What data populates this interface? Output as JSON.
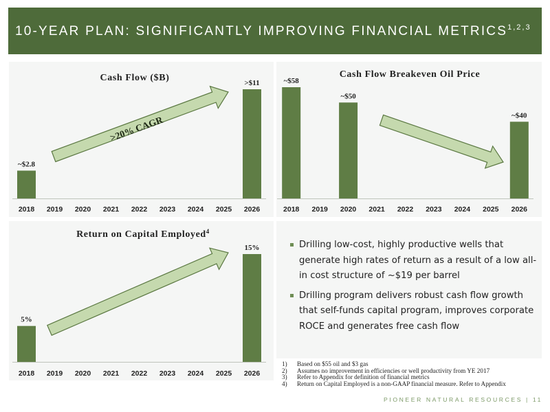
{
  "header": {
    "title": "10-YEAR PLAN: SIGNIFICANTLY IMPROVING FINANCIAL METRICS",
    "superscript": "1,2,3"
  },
  "colors": {
    "header_bg": "#4e6b3a",
    "bar": "#5f7d45",
    "arrow_fill": "#c5d9ae",
    "arrow_stroke": "#5b7842",
    "panel_bg": "#f5f6f5",
    "accent": "#7d9a68"
  },
  "chart_data": [
    {
      "type": "bar",
      "title": "Cash Flow ($B)",
      "categories": [
        "2018",
        "2019",
        "2020",
        "2021",
        "2022",
        "2023",
        "2024",
        "2025",
        "2026"
      ],
      "values": [
        2.8,
        null,
        null,
        null,
        null,
        null,
        null,
        null,
        11
      ],
      "data_labels": [
        "~$2.8",
        "",
        "",
        "",
        "",
        "",
        "",
        "",
        ">$11"
      ],
      "annotation": ">20% CAGR",
      "arrow": "up"
    },
    {
      "type": "bar",
      "title": "Cash Flow Breakeven Oil Price",
      "categories": [
        "2018",
        "2019",
        "2020",
        "2021",
        "2022",
        "2023",
        "2024",
        "2025",
        "2026"
      ],
      "values": [
        58,
        null,
        50,
        null,
        null,
        null,
        null,
        null,
        40
      ],
      "data_labels": [
        "~$58",
        "",
        "~$50",
        "",
        "",
        "",
        "",
        "",
        "~$40"
      ],
      "annotation": "",
      "arrow": "down"
    },
    {
      "type": "bar",
      "title": "Return on Capital Employed",
      "title_superscript": "4",
      "categories": [
        "2018",
        "2019",
        "2020",
        "2021",
        "2022",
        "2023",
        "2024",
        "2025",
        "2026"
      ],
      "values": [
        5,
        null,
        null,
        null,
        null,
        null,
        null,
        null,
        15
      ],
      "data_labels": [
        "5%",
        "",
        "",
        "",
        "",
        "",
        "",
        "",
        "15%"
      ],
      "annotation": "",
      "arrow": "up"
    }
  ],
  "bullets": [
    "Drilling low-cost, highly productive wells that generate high rates of return as a result of a low all-in cost structure of ~$19 per barrel",
    "Drilling program delivers robust cash flow growth that self-funds capital program, improves corporate ROCE and generates free cash flow"
  ],
  "footnotes": [
    {
      "num": "1)",
      "text": "Based on $55 oil and $3 gas"
    },
    {
      "num": "2)",
      "text": "Assumes no improvement in efficiencies or well productivity from YE 2017"
    },
    {
      "num": "3)",
      "text": "Refer to Appendix for definition of financial metrics"
    },
    {
      "num": "4)",
      "text": "Return on Capital Employed is a non-GAAP financial measure. Refer to Appendix"
    }
  ],
  "brand": "PIONEER NATURAL RESOURCES | 11"
}
